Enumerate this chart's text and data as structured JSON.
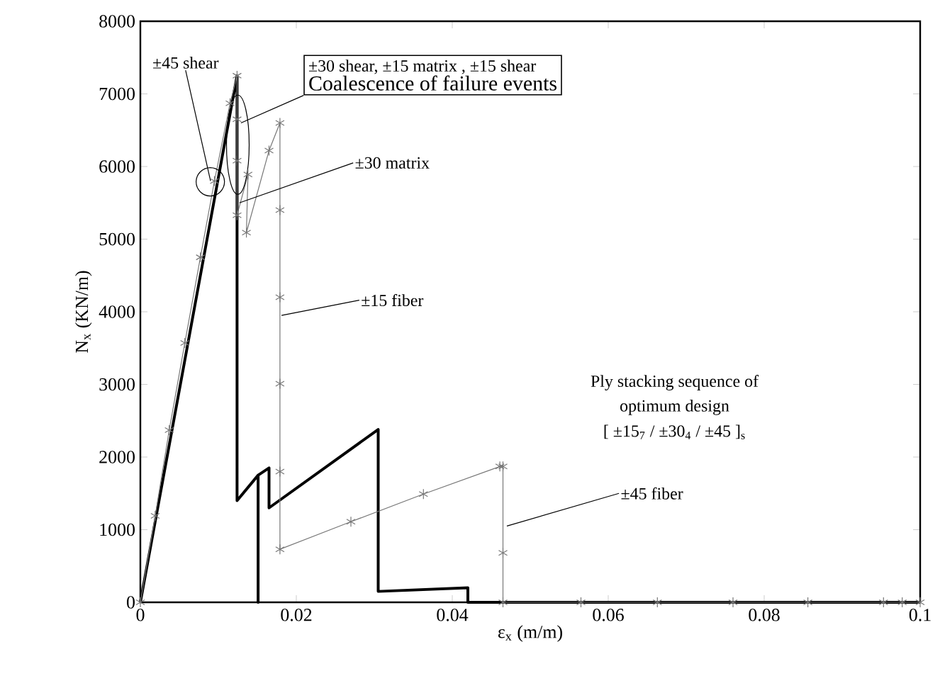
{
  "chart_data": {
    "type": "line",
    "xlabel": "ε$_{x}$ (m/m)",
    "ylabel": "N$_{x}$ (KN/m)",
    "xlim": [
      0,
      0.1
    ],
    "ylim": [
      0,
      8000
    ],
    "xticks": [
      0,
      0.02,
      0.04,
      0.06,
      0.08,
      0.1
    ],
    "yticks": [
      0,
      1000,
      2000,
      3000,
      4000,
      5000,
      6000,
      7000,
      8000
    ],
    "series": [
      {
        "color": "#000000",
        "marker": "none",
        "x": [
          0,
          0.0124,
          0.0124,
          0.0151,
          0.0151,
          0.0151,
          0.0165,
          0.0165,
          0.0305,
          0.0305,
          0.042,
          0.042,
          0.1
        ],
        "values": [
          0,
          7250,
          1400,
          1750,
          0,
          1750,
          1850,
          1300,
          2380,
          150,
          200,
          0,
          0
        ]
      },
      {
        "color": "#777777",
        "marker": "cross",
        "x": [
          0,
          0.0019,
          0.0037,
          0.0057,
          0.0077,
          0.0095,
          0.0115,
          0.0124,
          0.0124,
          0.0124,
          0.0124,
          0.0138,
          0.0136,
          0.0165,
          0.0179,
          0.0179,
          0.0179,
          0.0179,
          0.0179,
          0.0179,
          0.027,
          0.0363,
          0.0461,
          0.0465,
          0.0465,
          0.0465,
          0.0565,
          0.0663,
          0.076,
          0.0856,
          0.0953,
          0.0977,
          0.1
        ],
        "values": [
          0,
          1190,
          2370,
          3570,
          4750,
          5800,
          6870,
          7250,
          6650,
          6080,
          5330,
          5890,
          5090,
          6220,
          6600,
          5400,
          4200,
          3010,
          1800,
          730,
          1110,
          1490,
          1870,
          1870,
          680,
          0,
          0,
          0,
          0,
          0,
          0,
          0,
          0
        ]
      }
    ],
    "annotations": [
      {
        "text": "±45 shear",
        "x": 0.009,
        "y": 5800
      },
      {
        "text": "±30 shear, ±15 matrix , ±15 shear",
        "x": 0.0129,
        "y": 6600
      },
      "Coalescence of failure events",
      {
        "text": "±30 matrix",
        "x": 0.0127,
        "y": 5500
      },
      {
        "text": "±15 fiber",
        "x": 0.0181,
        "y": 3950
      },
      {
        "text": "±45 fiber",
        "x": 0.047,
        "y": 1050
      },
      "Ply stacking sequence of",
      "optimum design",
      "[ ±15$_{7}$ / ±30$_{4}$ / ±45 ]$_{s}$"
    ]
  }
}
